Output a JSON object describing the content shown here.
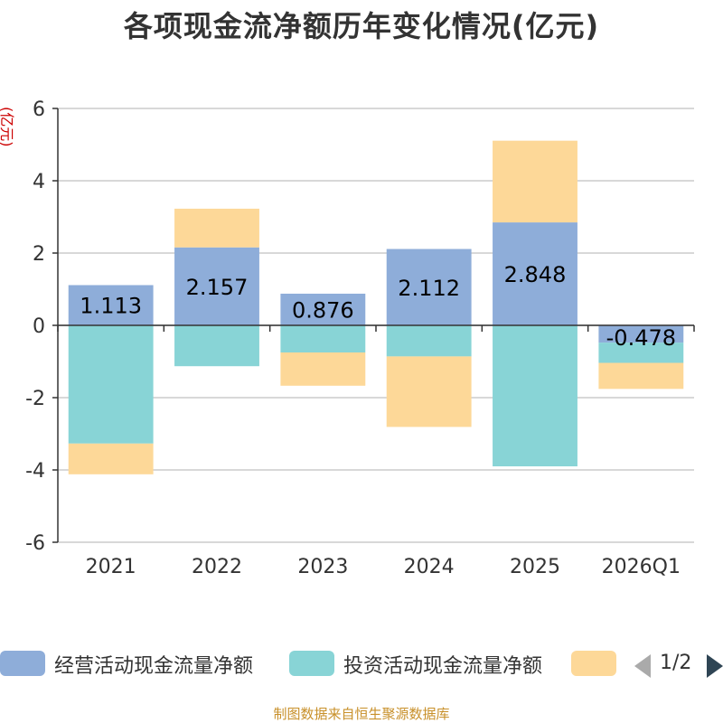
{
  "chart_data": {
    "type": "bar",
    "stacked": true,
    "title": "各项现金流净额历年变化情况(亿元)",
    "ylabel": "(亿元)",
    "xlabel": "",
    "ylim": [
      -6,
      6
    ],
    "yticks": [
      -6,
      -4,
      -2,
      0,
      2,
      4,
      6
    ],
    "categories": [
      "2021",
      "2022",
      "2023",
      "2024",
      "2025",
      "2026Q1"
    ],
    "series": [
      {
        "name": "经营活动现金流量净额",
        "color": "#8eadd9",
        "values": [
          1.113,
          2.157,
          0.876,
          2.112,
          2.848,
          -0.478
        ],
        "labels": [
          "1.113",
          "2.157",
          "0.876",
          "2.112",
          "2.848",
          "-0.478"
        ]
      },
      {
        "name": "投资活动现金流量净额",
        "color": "#88d4d6",
        "values": [
          -3.27,
          -1.13,
          -0.75,
          -0.86,
          -3.9,
          -0.56
        ]
      },
      {
        "name": "",
        "color": "#fdd898",
        "values": [
          -0.85,
          1.07,
          -0.92,
          -1.95,
          2.26,
          -0.72
        ]
      }
    ],
    "legend_position": "bottom",
    "grid": true
  },
  "legend": {
    "page_indicator": "1/2"
  },
  "source_note": "制图数据来自恒生聚源数据库"
}
